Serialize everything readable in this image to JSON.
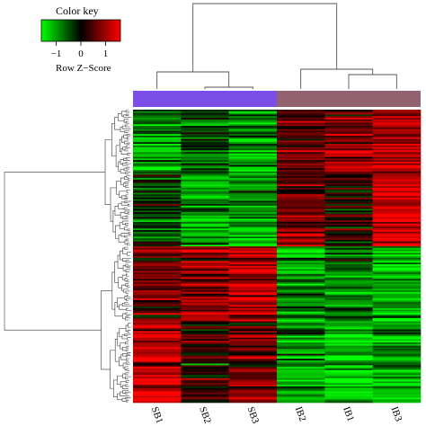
{
  "chart_data": {
    "type": "heatmap",
    "color_key": {
      "title": "Color key",
      "label": "Row Z−Score",
      "ticks": [
        "−1",
        "0",
        "1"
      ],
      "tick_values": [
        -1,
        0,
        1
      ],
      "range": [
        -1.6,
        1.6
      ],
      "colors": {
        "low": "#00ff00",
        "mid": "#000000",
        "high": "#ff0000"
      }
    },
    "columns": [
      "SB1",
      "SB2",
      "SB3",
      "IB2",
      "IB1",
      "IB3"
    ],
    "groups": [
      {
        "members": [
          "SB1",
          "SB2",
          "SB3"
        ],
        "color": "#7b4ee8"
      },
      {
        "members": [
          "IB2",
          "IB1",
          "IB3"
        ],
        "color": "#93626f"
      }
    ],
    "row_clusters": [
      {
        "rows": 40,
        "col_means": [
          -0.8,
          -0.4,
          -0.8,
          0.5,
          0.7,
          0.9
        ]
      },
      {
        "rows": 44,
        "col_means": [
          -0.5,
          -0.9,
          -0.9,
          0.6,
          0.2,
          1.3
        ]
      },
      {
        "rows": 46,
        "col_means": [
          0.6,
          0.8,
          1.1,
          -0.9,
          -0.7,
          -1.0
        ]
      },
      {
        "rows": 50,
        "col_means": [
          1.1,
          0.3,
          0.6,
          -0.8,
          -1.1,
          -0.9
        ]
      }
    ]
  }
}
